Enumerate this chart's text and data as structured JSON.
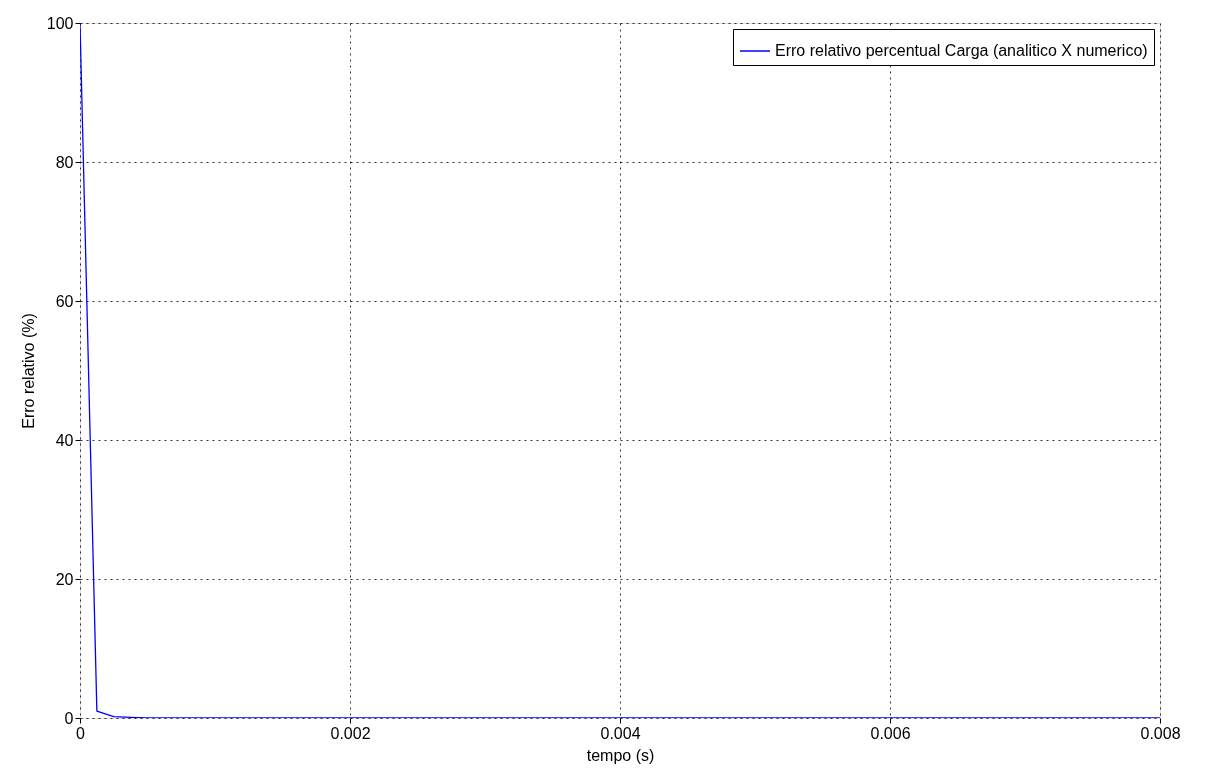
{
  "chart_data": {
    "type": "line",
    "xlabel": "tempo (s)",
    "ylabel": "Erro relativo (%)",
    "x": [
      0,
      0.000125,
      0.00025,
      0.000375,
      0.0005,
      0.008
    ],
    "series": [
      {
        "name": "Erro relativo percentual Carga (analitico X numerico)",
        "color": "#0000ff",
        "values": [
          100,
          1,
          0.2,
          0.1,
          0,
          0
        ]
      }
    ],
    "xlim": [
      0,
      0.008
    ],
    "xticks": [
      0,
      0.002,
      0.004,
      0.006,
      0.008
    ],
    "ylim": [
      0,
      100
    ],
    "yticks": [
      0,
      20,
      40,
      60,
      80,
      100
    ],
    "grid": true,
    "legend": "top right",
    "marker": "none",
    "line_style": "solid"
  }
}
